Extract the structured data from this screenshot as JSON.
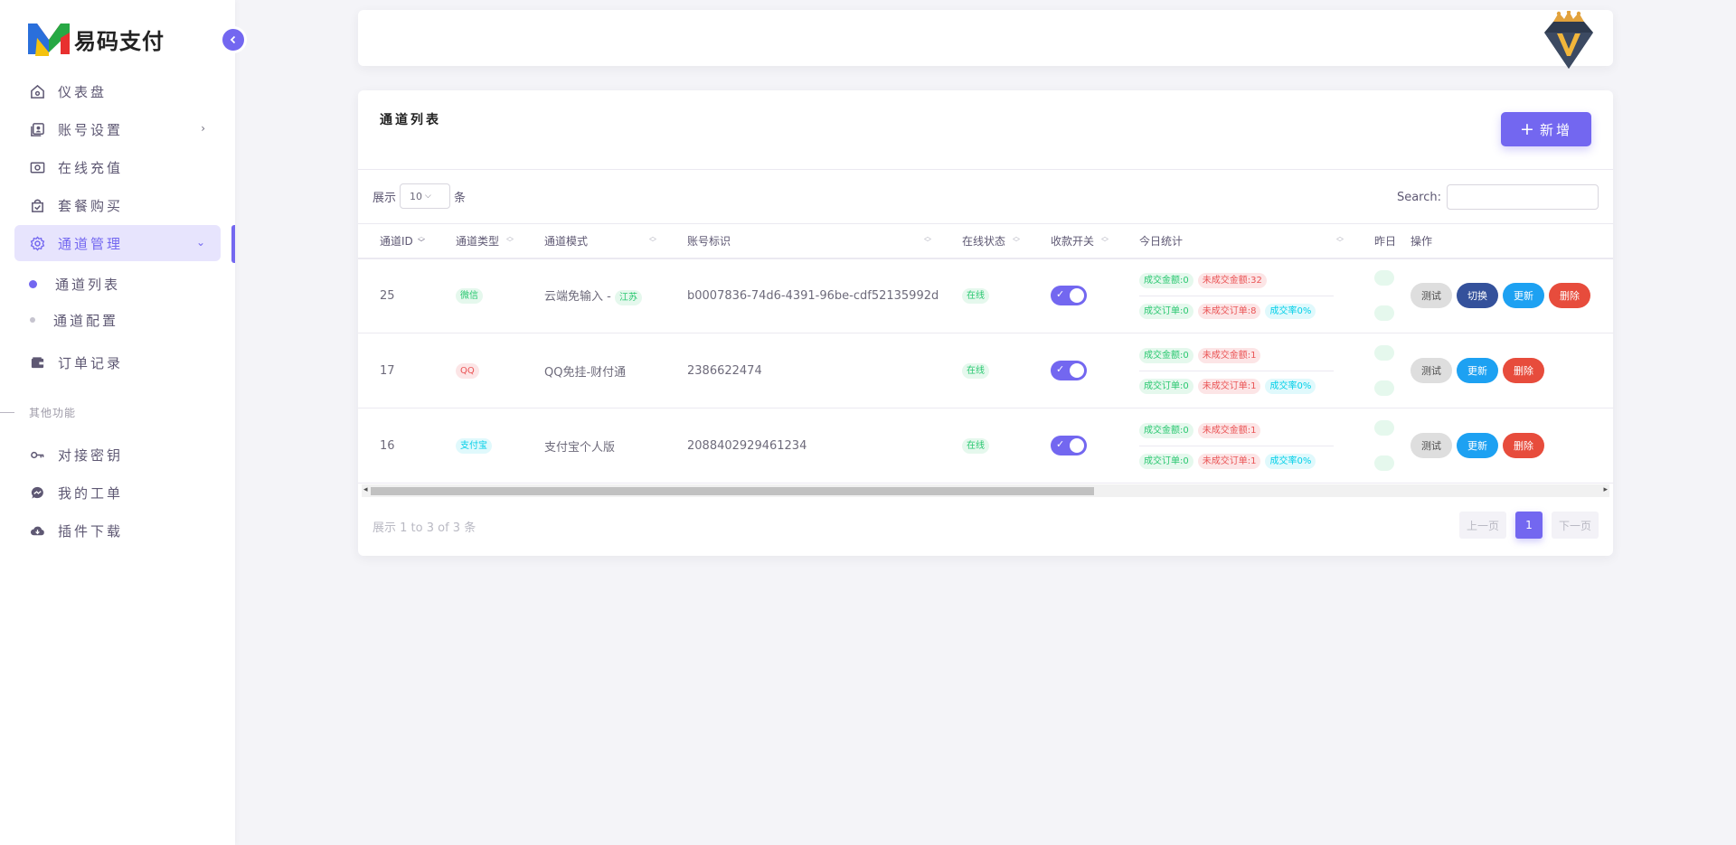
{
  "brand": {
    "name": "易码支付"
  },
  "sidebar": {
    "items": [
      {
        "label": "仪表盘",
        "icon": "home-icon"
      },
      {
        "label": "账号设置",
        "icon": "user-card-icon"
      },
      {
        "label": "在线充值",
        "icon": "money-icon"
      },
      {
        "label": "套餐购买",
        "icon": "shopping-bag-icon"
      },
      {
        "label": "通道管理",
        "icon": "settings-icon"
      },
      {
        "label": "订单记录",
        "icon": "wallet-icon"
      }
    ],
    "sub_items": [
      {
        "label": "通道列表"
      },
      {
        "label": "通道配置"
      }
    ],
    "section_label": "其他功能",
    "other_items": [
      {
        "label": "对接密钥",
        "icon": "key-icon"
      },
      {
        "label": "我的工单",
        "icon": "messenger-icon"
      },
      {
        "label": "插件下载",
        "icon": "cloud-download-icon"
      }
    ]
  },
  "card": {
    "title": "通道列表",
    "add_button": {
      "plus": "+",
      "label": "新增"
    },
    "length": {
      "prefix": "展示",
      "value": "10",
      "suffix": "条"
    },
    "search_label": "Search:",
    "columns": [
      "通道ID",
      "通道类型",
      "通道模式",
      "账号标识",
      "在线状态",
      "收款开关",
      "今日统计",
      "昨日",
      "操作"
    ],
    "rows": [
      {
        "id": "25",
        "type": "微信",
        "mode": "云端免输入 -",
        "mode_tag": "江苏",
        "account": "b0007836-74d6-4391-96be-cdf52135992d",
        "status": "在线",
        "today": {
          "amount": "成交金额:0",
          "unpaid_amount": "未成交金额:32",
          "orders": "成交订单:0",
          "unpaid_orders": "未成交订单:8",
          "rate": "成交率0%"
        },
        "ops": [
          "测试",
          "切换",
          "更新",
          "删除"
        ]
      },
      {
        "id": "17",
        "type": "QQ",
        "mode": "QQ免挂-财付通",
        "account": "2386622474",
        "status": "在线",
        "today": {
          "amount": "成交金额:0",
          "unpaid_amount": "未成交金额:1",
          "orders": "成交订单:0",
          "unpaid_orders": "未成交订单:1",
          "rate": "成交率0%"
        },
        "ops": [
          "测试",
          "更新",
          "删除"
        ]
      },
      {
        "id": "16",
        "type": "支付宝",
        "mode": "支付宝个人版",
        "account": "2088402929461234",
        "status": "在线",
        "today": {
          "amount": "成交金额:0",
          "unpaid_amount": "未成交金额:1",
          "orders": "成交订单:0",
          "unpaid_orders": "未成交订单:1",
          "rate": "成交率0%"
        },
        "ops": [
          "测试",
          "更新",
          "删除"
        ]
      }
    ],
    "info": "展示 1 to 3 of 3 条",
    "pager": {
      "prev": "上一页",
      "current": "1",
      "next": "下一页"
    }
  },
  "colors": {
    "primary": "#7367f0",
    "success": "#28c76f",
    "danger": "#ea5455",
    "info": "#00cfe8"
  }
}
